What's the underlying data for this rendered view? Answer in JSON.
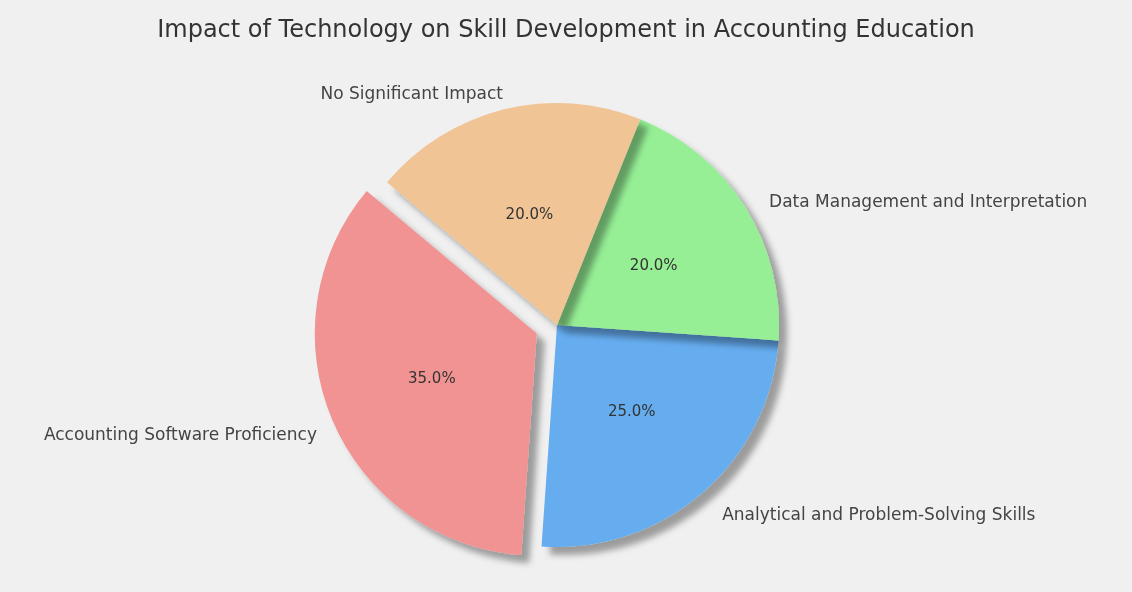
{
  "chart_data": {
    "type": "pie",
    "title": "Impact of Technology on Skill Development in Accounting Education",
    "categories": [
      "Accounting Software Proficiency",
      "Analytical and Problem-Solving Skills",
      "Data Management and Interpretation",
      "No Significant Impact"
    ],
    "values": [
      35,
      25,
      20,
      20
    ],
    "colors": [
      "#f19393",
      "#66adf0",
      "#96ef95",
      "#f0c494"
    ],
    "value_labels": [
      "35.0%",
      "25.0%",
      "20.0%",
      "20.0%"
    ],
    "legend": false
  }
}
